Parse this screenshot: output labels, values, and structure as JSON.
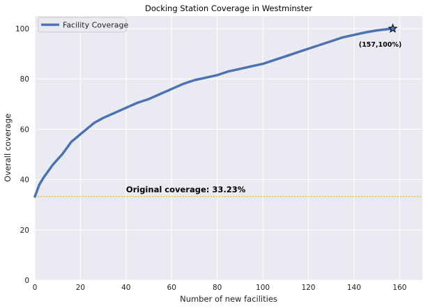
{
  "chart_data": {
    "type": "line",
    "title": "Docking Station Coverage in Westminster",
    "xlabel": "Number of new facilities",
    "ylabel": "Overall coverage",
    "xlim": [
      0,
      170
    ],
    "ylim": [
      0,
      105
    ],
    "xticks": [
      "0",
      "20",
      "40",
      "60",
      "80",
      "100",
      "120",
      "140",
      "160"
    ],
    "xtick_values": [
      0,
      20,
      40,
      60,
      80,
      100,
      120,
      140,
      160
    ],
    "yticks": [
      "0",
      "20",
      "40",
      "60",
      "80",
      "100"
    ],
    "ytick_values": [
      0,
      20,
      40,
      60,
      80,
      100
    ],
    "grid": true,
    "legend_position": "top-left",
    "series": [
      {
        "name": "Facility Coverage",
        "color": "#4c72b0",
        "x": [
          0,
          2,
          4,
          6,
          8,
          10,
          12,
          14,
          16,
          18,
          20,
          22,
          24,
          26,
          28,
          30,
          35,
          40,
          45,
          50,
          55,
          60,
          65,
          70,
          75,
          80,
          85,
          90,
          95,
          100,
          105,
          110,
          115,
          120,
          125,
          130,
          135,
          140,
          145,
          150,
          155,
          157
        ],
        "y": [
          33.23,
          38,
          41,
          43.5,
          46,
          48,
          50,
          52.5,
          55,
          56.5,
          58,
          59.5,
          61,
          62.5,
          63.5,
          64.5,
          66.5,
          68.5,
          70.5,
          72,
          74,
          76,
          78,
          79.5,
          80.5,
          81.5,
          83,
          84,
          85,
          86,
          87.5,
          89,
          90.5,
          92,
          93.5,
          95,
          96.5,
          97.5,
          98.5,
          99.3,
          99.8,
          100
        ]
      }
    ],
    "reference_line": {
      "y": 33.23,
      "color": "#f5a623",
      "label": "Original coverage: 33.23%",
      "label_x": 40
    },
    "endpoint_marker": {
      "x": 157,
      "y": 100,
      "label": "(157,100%)"
    }
  }
}
